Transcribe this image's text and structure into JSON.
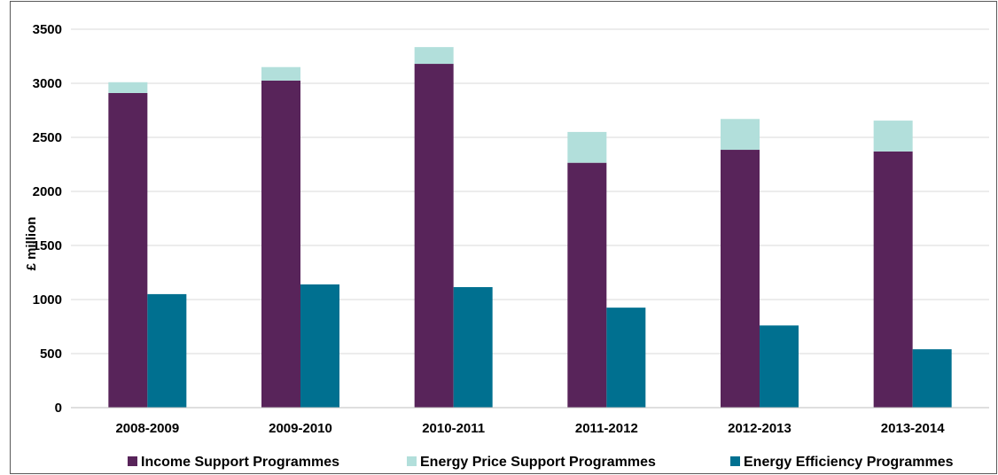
{
  "chart_data": {
    "type": "bar",
    "ylabel": "£ million",
    "ylim": [
      0,
      3500
    ],
    "yticks": [
      0,
      500,
      1000,
      1500,
      2000,
      2500,
      3000,
      3500
    ],
    "categories": [
      "2008-2009",
      "2009-2010",
      "2010-2011",
      "2011-2012",
      "2012-2013",
      "2013-2014"
    ],
    "stacked_bar": {
      "series": [
        {
          "name": "Income Support Programmes",
          "color": "#58245a",
          "values": [
            2910,
            3025,
            3180,
            2265,
            2385,
            2370
          ]
        },
        {
          "name": "Energy Price Support Programmes",
          "color": "#b2dfdb",
          "values": [
            100,
            125,
            155,
            285,
            285,
            285
          ]
        }
      ]
    },
    "side_bar": {
      "series": [
        {
          "name": "Energy Efficiency Programmes",
          "color": "#007090",
          "values": [
            1050,
            1140,
            1115,
            925,
            760,
            540
          ]
        }
      ]
    },
    "grid": true,
    "legend_position": "bottom"
  }
}
